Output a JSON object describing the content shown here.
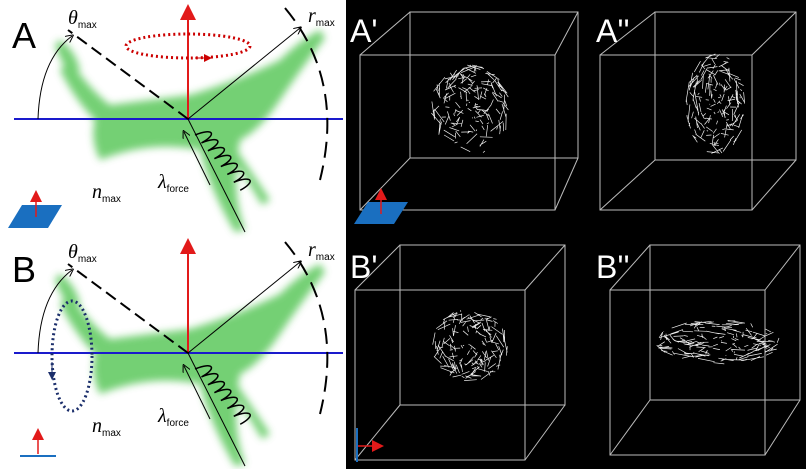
{
  "panels": [
    {
      "label": "A",
      "theta": {
        "symbol": "θ",
        "sub": "max"
      },
      "r": {
        "symbol": "r",
        "sub": "max"
      },
      "n": {
        "symbol": "n",
        "sub": "max"
      },
      "lambda": {
        "symbol": "λ",
        "sub": "force"
      }
    },
    {
      "label": "B",
      "theta": {
        "symbol": "θ",
        "sub": "max"
      },
      "r": {
        "symbol": "r",
        "sub": "max"
      },
      "n": {
        "symbol": "n",
        "sub": "max"
      },
      "lambda": {
        "symbol": "λ",
        "sub": "force"
      }
    }
  ],
  "simulations": [
    {
      "label": "A'"
    },
    {
      "label": "A''"
    },
    {
      "label": "B'"
    },
    {
      "label": "B''"
    }
  ]
}
